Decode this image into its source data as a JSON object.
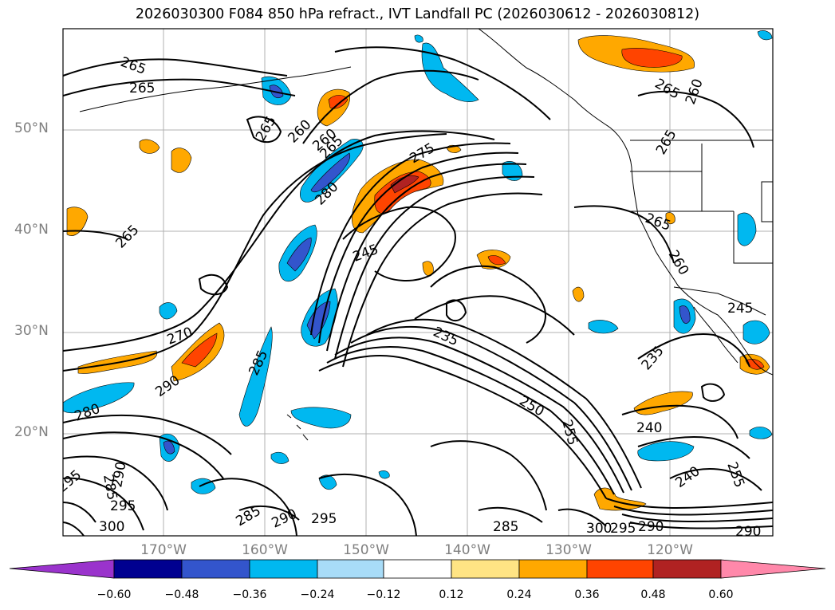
{
  "title": "2026030300 F084 850 hPa refract., IVT Landfall PC (2026030612 - 2026030812)",
  "lat_labels": [
    "50°N",
    "40°N",
    "30°N",
    "20°N"
  ],
  "lon_labels": [
    "170°W",
    "160°W",
    "150°W",
    "140°W",
    "130°W",
    "120°W"
  ],
  "colorbar": {
    "ticks": [
      "−0.60",
      "−0.48",
      "−0.36",
      "−0.24",
      "−0.12",
      "0.12",
      "0.24",
      "0.36",
      "0.48",
      "0.60"
    ],
    "colors": [
      "#9a33cc",
      "#000090",
      "#3355cc",
      "#00b8f0",
      "#a8dcf8",
      "#ffffff",
      "#ffe484",
      "#ffa800",
      "#ff4400",
      "#b02222",
      "#ff88aa",
      "#ff88aa"
    ]
  },
  "contour_labels": [
    "265",
    "265",
    "260",
    "265",
    "260",
    "265",
    "280",
    "275",
    "245",
    "265",
    "260",
    "270",
    "290",
    "285",
    "235",
    "250",
    "255",
    "245",
    "235",
    "280",
    "240",
    "295",
    "285",
    "290",
    "295",
    "300",
    "285",
    "290",
    "295",
    "285",
    "300",
    "295",
    "290",
    "240",
    "255",
    "290",
    "265",
    "265",
    "260"
  ]
}
